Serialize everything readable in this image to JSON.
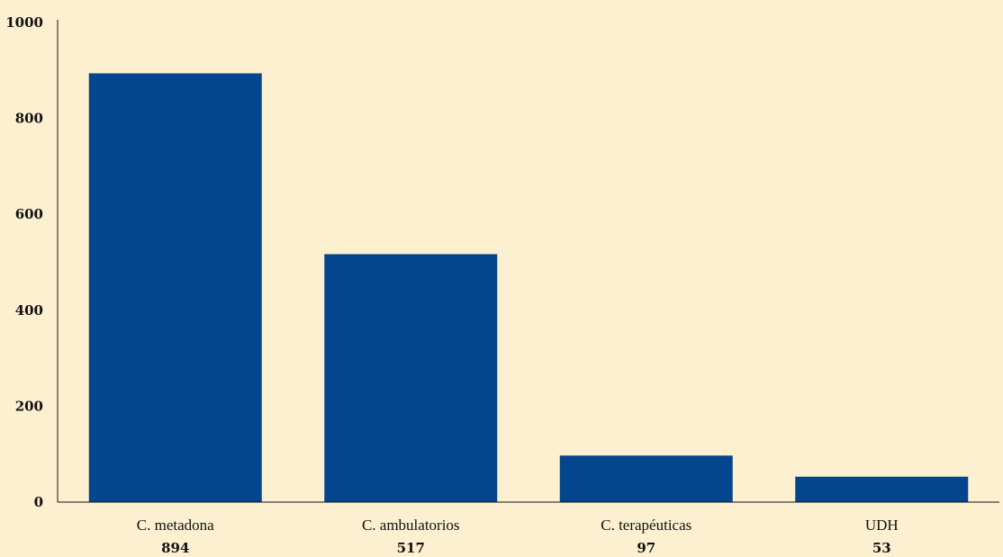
{
  "colors": {
    "background": "#fdf0d0",
    "bar": "#03468d",
    "axis": "#111111"
  },
  "chart_data": {
    "type": "bar",
    "categories": [
      "C. metadona",
      "C. ambulatorios",
      "C. terapéuticas",
      "UDH"
    ],
    "values": [
      894,
      517,
      97,
      53
    ],
    "value_labels": [
      "894",
      "517",
      "97",
      "53"
    ],
    "title": "",
    "xlabel": "",
    "ylabel": "",
    "ylim": [
      0,
      1000
    ],
    "yticks": [
      0,
      200,
      400,
      600,
      800,
      1000
    ],
    "ytick_labels": [
      "0",
      "200",
      "400",
      "600",
      "800",
      "1000"
    ],
    "grid": false,
    "legend": "none"
  }
}
